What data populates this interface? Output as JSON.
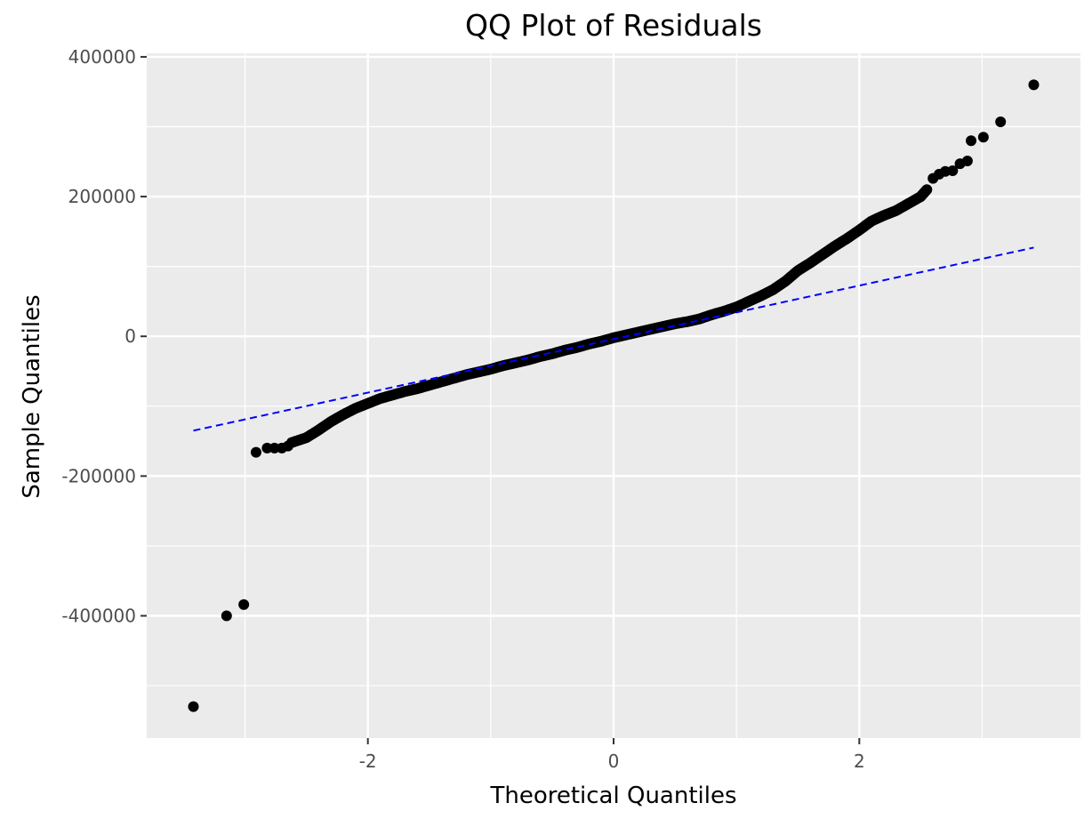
{
  "chart_data": {
    "type": "scatter",
    "title": "QQ Plot of Residuals",
    "xlabel": "Theoretical Quantiles",
    "ylabel": "Sample Quantiles",
    "xlim": [
      -3.8,
      3.8
    ],
    "ylim": [
      -575000,
      405000
    ],
    "x_ticks": [
      -2,
      0,
      2
    ],
    "x_tick_labels": [
      "-2",
      "0",
      "2"
    ],
    "y_ticks": [
      400000,
      200000,
      0,
      -200000,
      -400000
    ],
    "y_tick_labels": [
      "400000",
      "200000",
      "0",
      "-200000",
      "-400000"
    ],
    "grid": true,
    "legend": "none",
    "colors": {
      "panel": "#ebebeb",
      "grid": "#ffffff",
      "points": "#000000",
      "reference_line": "#0000ff"
    },
    "reference_line": {
      "style": "dashed",
      "x": [
        -3.42,
        3.42
      ],
      "y": [
        -135000,
        127000
      ]
    },
    "outliers": [
      {
        "x": -3.42,
        "y": -530000
      },
      {
        "x": -3.15,
        "y": -400000
      },
      {
        "x": -3.01,
        "y": -384000
      },
      {
        "x": -2.91,
        "y": -166000
      },
      {
        "x": -2.82,
        "y": -160000
      },
      {
        "x": -2.76,
        "y": -160000
      },
      {
        "x": -2.7,
        "y": -160000
      },
      {
        "x": -2.65,
        "y": -157000
      },
      {
        "x": 2.6,
        "y": 226000
      },
      {
        "x": 2.65,
        "y": 232000
      },
      {
        "x": 2.7,
        "y": 236000
      },
      {
        "x": 2.76,
        "y": 237000
      },
      {
        "x": 2.82,
        "y": 247000
      },
      {
        "x": 2.88,
        "y": 251000
      },
      {
        "x": 2.91,
        "y": 280000
      },
      {
        "x": 3.01,
        "y": 285000
      },
      {
        "x": 3.15,
        "y": 307000
      },
      {
        "x": 3.42,
        "y": 360000
      }
    ],
    "body_curve": {
      "x": [
        -2.62,
        -2.5,
        -2.4,
        -2.3,
        -2.2,
        -2.1,
        -2.0,
        -1.9,
        -1.8,
        -1.7,
        -1.6,
        -1.5,
        -1.4,
        -1.3,
        -1.2,
        -1.1,
        -1.0,
        -0.9,
        -0.8,
        -0.7,
        -0.6,
        -0.5,
        -0.4,
        -0.3,
        -0.2,
        -0.1,
        0.0,
        0.1,
        0.2,
        0.3,
        0.4,
        0.5,
        0.6,
        0.7,
        0.8,
        0.9,
        1.0,
        1.1,
        1.2,
        1.3,
        1.4,
        1.5,
        1.6,
        1.7,
        1.8,
        1.9,
        2.0,
        2.1,
        2.2,
        2.3,
        2.4,
        2.5,
        2.55
      ],
      "y": [
        -152000,
        -145000,
        -134000,
        -122000,
        -112000,
        -103000,
        -96000,
        -89000,
        -84000,
        -79000,
        -75000,
        -70000,
        -65000,
        -60000,
        -55000,
        -51000,
        -47000,
        -42000,
        -38000,
        -34000,
        -29000,
        -25000,
        -20000,
        -16000,
        -11000,
        -7000,
        -2000,
        2000,
        6000,
        10000,
        14000,
        18000,
        21000,
        25000,
        31000,
        36000,
        42000,
        50000,
        58000,
        67000,
        79000,
        94000,
        105000,
        117000,
        129000,
        140000,
        152000,
        165000,
        173000,
        180000,
        190000,
        200000,
        210000
      ]
    }
  }
}
